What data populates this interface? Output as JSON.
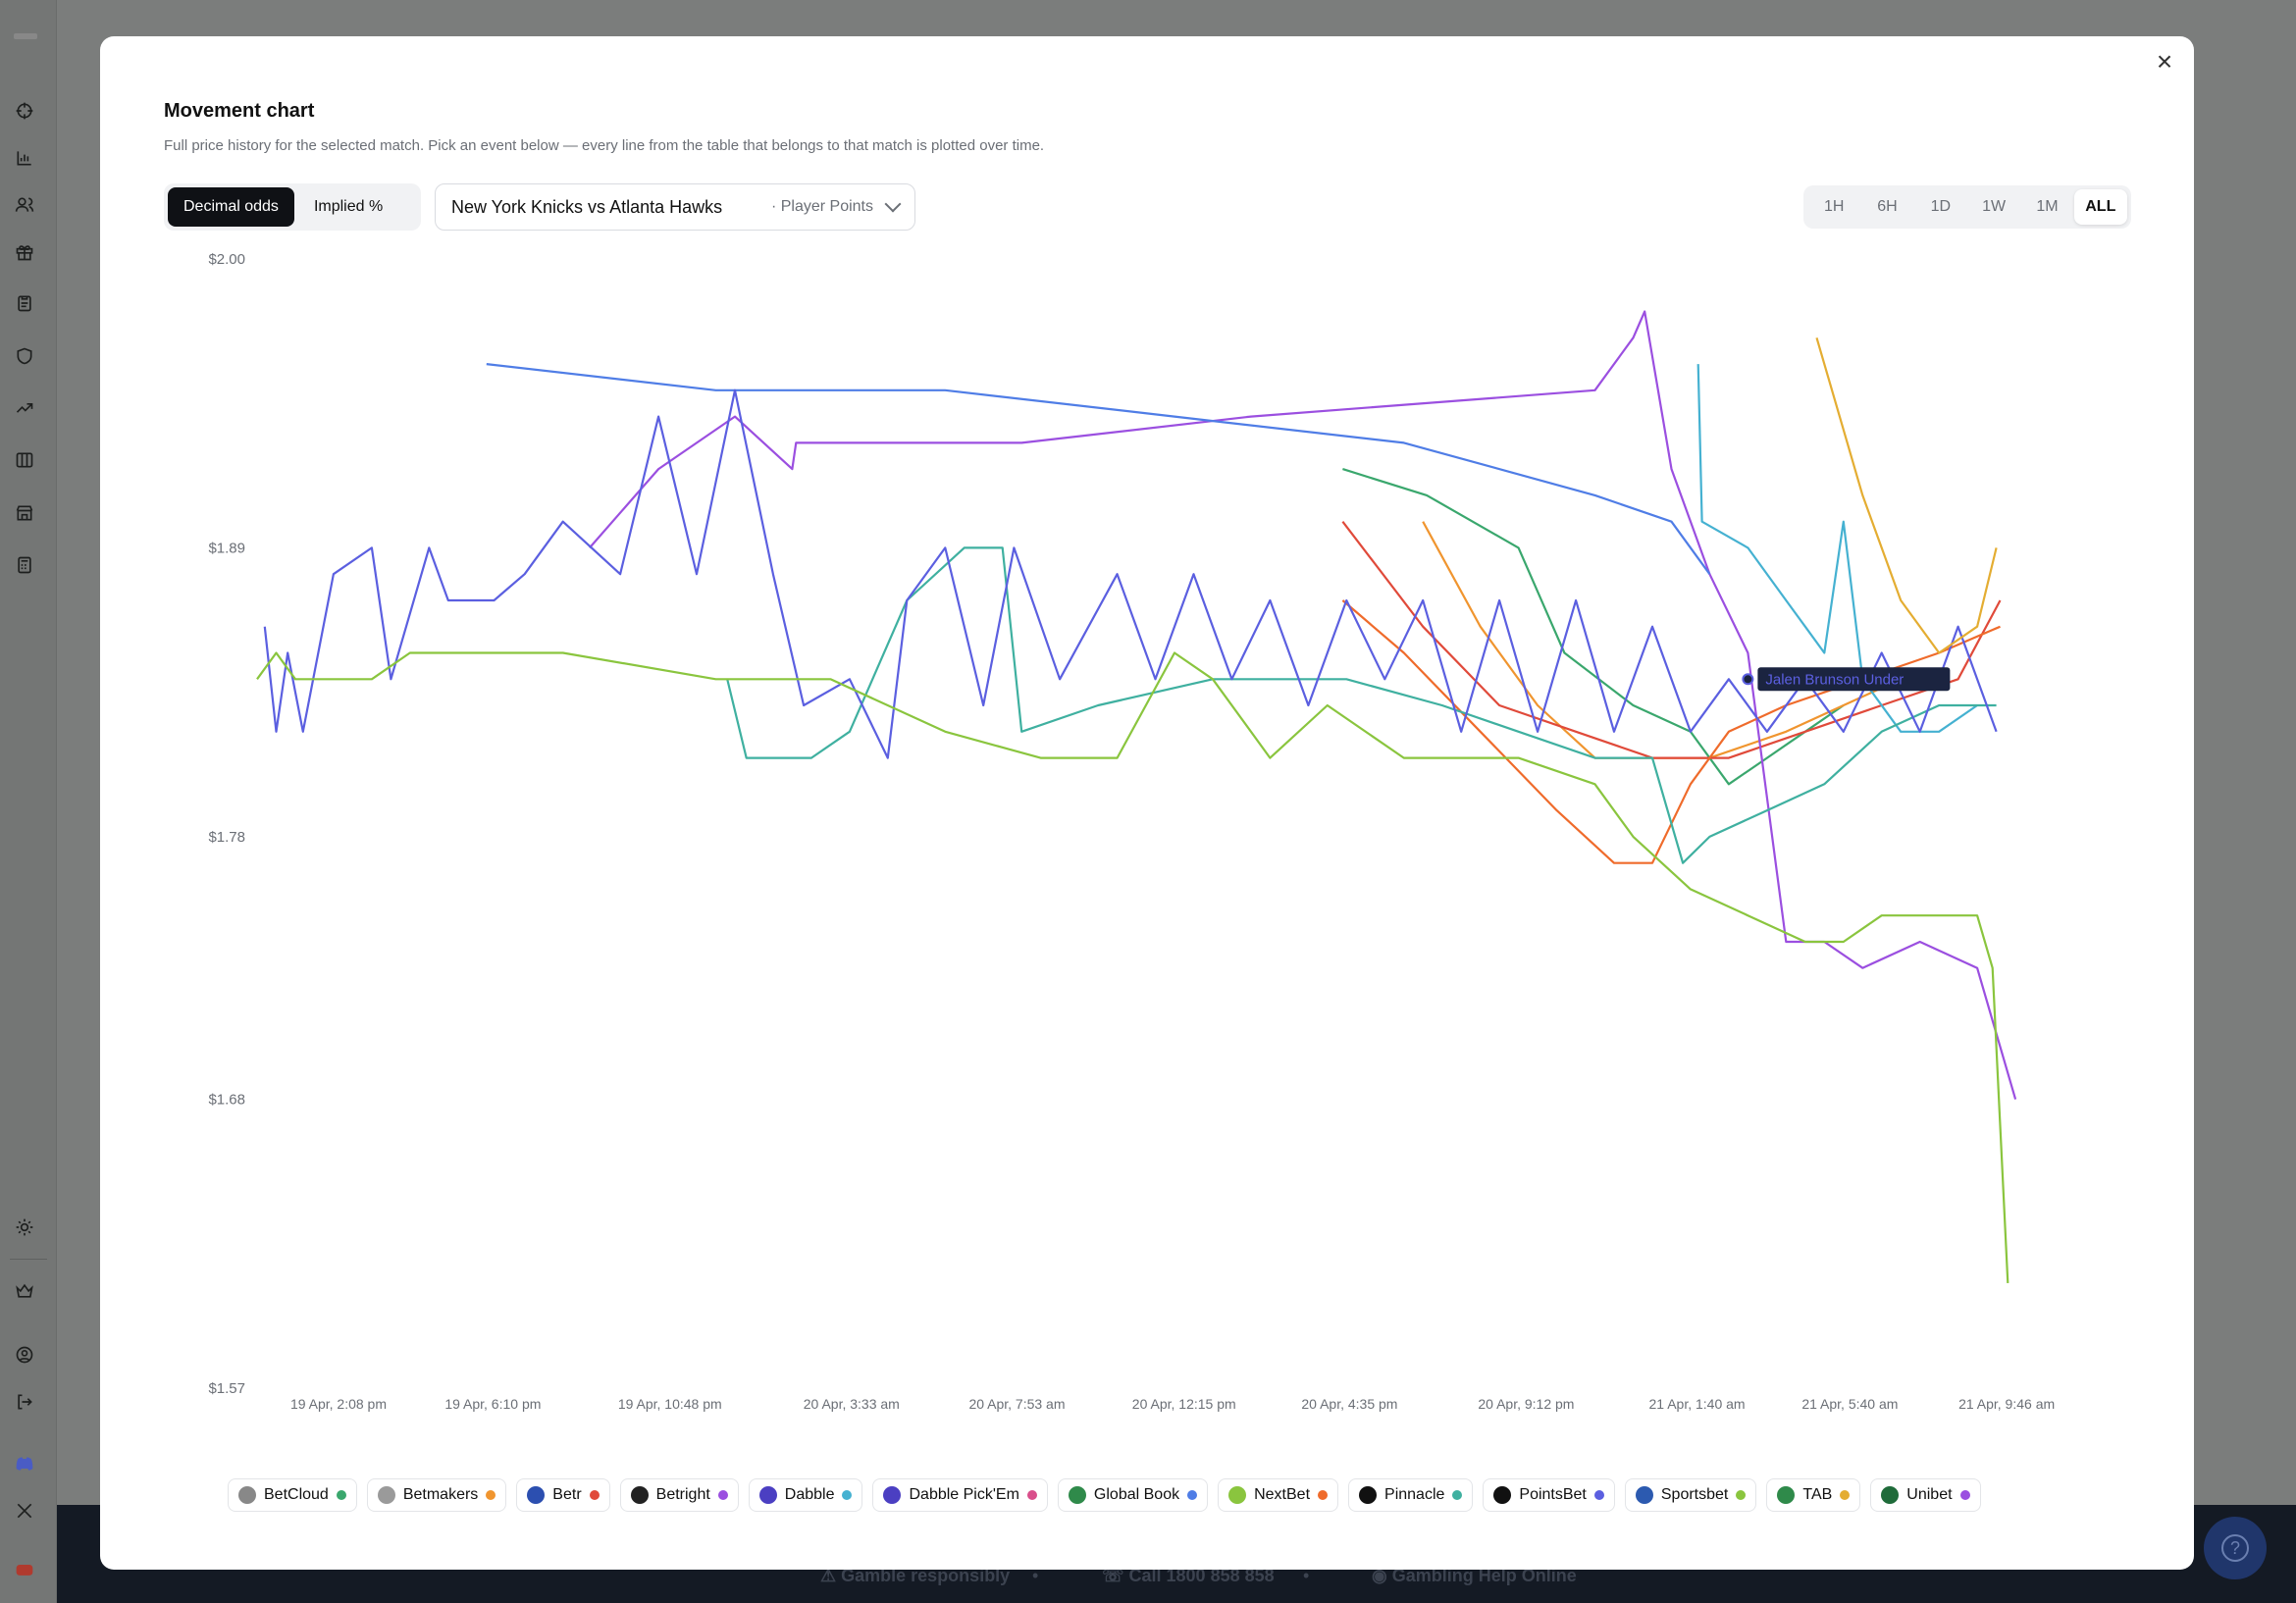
{
  "modal": {
    "title": "Movement chart",
    "subtitle": "Full price history for the selected match. Pick an event below — every line from the table that belongs to that match is plotted over time.",
    "close_label": "×"
  },
  "odds_toggle": {
    "options": [
      "Decimal odds",
      "Implied %"
    ],
    "selected": "Decimal odds"
  },
  "event_select": {
    "event": "New York Knicks vs Atlanta Hawks",
    "market": "· Player Points"
  },
  "time_range": {
    "options": [
      "1H",
      "6H",
      "1D",
      "1W",
      "1M",
      "ALL"
    ],
    "selected": "ALL"
  },
  "footer": {
    "gamble": "Gamble responsibly",
    "call": "Call 1800 858 858",
    "help": "Gambling Help Online",
    "separator": "•"
  },
  "chart_data": {
    "type": "line",
    "y_ticks": [
      "$2.00",
      "$1.89",
      "$1.78",
      "$1.68",
      "$1.57"
    ],
    "y_tick_values": [
      2.0,
      1.89,
      1.78,
      1.68,
      1.57
    ],
    "ylim": [
      1.57,
      2.0
    ],
    "x_ticks": [
      "19 Apr, 2:08 pm",
      "19 Apr, 6:10 pm",
      "19 Apr, 10:48 pm",
      "20 Apr, 3:33 am",
      "20 Apr, 7:53 am",
      "20 Apr, 12:15 pm",
      "20 Apr, 4:35 pm",
      "20 Apr, 9:12 pm",
      "21 Apr, 1:40 am",
      "21 Apr, 5:40 am",
      "21 Apr, 9:46 am"
    ],
    "x_tick_hours": [
      2.13,
      6.17,
      10.8,
      15.55,
      19.88,
      24.25,
      28.58,
      33.2,
      37.67,
      41.67,
      45.77
    ],
    "xlim_hours": [
      0,
      48
    ],
    "grid": false,
    "legend_position": "bottom",
    "tooltip": {
      "label": "Jalen Brunson Under",
      "x": 39.0,
      "y": 1.84,
      "color": "#5b5fe0"
    },
    "series": [
      {
        "name": "BetCloud",
        "color": "#3aa76d",
        "points": [
          [
            28.4,
            1.92
          ],
          [
            30.6,
            1.91
          ],
          [
            33.0,
            1.89
          ],
          [
            34.2,
            1.85
          ],
          [
            36.0,
            1.83
          ],
          [
            37.5,
            1.82
          ],
          [
            38.5,
            1.8
          ],
          [
            39.5,
            1.81
          ],
          [
            40.5,
            1.82
          ],
          [
            41.5,
            1.83
          ]
        ]
      },
      {
        "name": "Betmakers",
        "color": "#f0952f",
        "points": [
          [
            30.5,
            1.9
          ],
          [
            32.0,
            1.86
          ],
          [
            33.5,
            1.83
          ],
          [
            35.0,
            1.81
          ],
          [
            36.5,
            1.81
          ],
          [
            38.0,
            1.81
          ],
          [
            40.0,
            1.82
          ],
          [
            41.5,
            1.83
          ],
          [
            43.0,
            1.84
          ]
        ]
      },
      {
        "name": "Betr",
        "color": "#e04a3a",
        "points": [
          [
            28.4,
            1.9
          ],
          [
            30.5,
            1.86
          ],
          [
            32.5,
            1.83
          ],
          [
            34.5,
            1.82
          ],
          [
            36.5,
            1.81
          ],
          [
            38.5,
            1.81
          ],
          [
            40.5,
            1.82
          ],
          [
            42.5,
            1.83
          ],
          [
            44.5,
            1.84
          ],
          [
            45.6,
            1.87
          ]
        ]
      },
      {
        "name": "Betright",
        "color": "#9b4fe0",
        "points": [
          [
            8.7,
            1.89
          ],
          [
            10.5,
            1.92
          ],
          [
            12.5,
            1.94
          ],
          [
            14.0,
            1.92
          ],
          [
            14.1,
            1.93
          ],
          [
            20.0,
            1.93
          ],
          [
            26.0,
            1.94
          ],
          [
            35.0,
            1.95
          ],
          [
            36.0,
            1.97
          ],
          [
            36.3,
            1.98
          ],
          [
            37.0,
            1.92
          ],
          [
            38.0,
            1.88
          ],
          [
            39.0,
            1.85
          ],
          [
            40.0,
            1.74
          ],
          [
            41.0,
            1.74
          ],
          [
            42.0,
            1.73
          ],
          [
            43.5,
            1.74
          ],
          [
            45.0,
            1.73
          ],
          [
            46.0,
            1.68
          ]
        ]
      },
      {
        "name": "Dabble",
        "color": "#45b1d1",
        "points": [
          [
            37.7,
            1.96
          ],
          [
            37.8,
            1.9
          ],
          [
            39.0,
            1.89
          ],
          [
            40.0,
            1.87
          ],
          [
            40.5,
            1.86
          ],
          [
            41.0,
            1.85
          ],
          [
            41.5,
            1.9
          ],
          [
            42.0,
            1.84
          ],
          [
            43.0,
            1.82
          ],
          [
            44.0,
            1.82
          ],
          [
            45.0,
            1.83
          ]
        ]
      },
      {
        "name": "Dabble Pick'Em",
        "color": "#d94f8b",
        "points": []
      },
      {
        "name": "Global Book",
        "color": "#4f7de6",
        "points": [
          [
            6.0,
            1.96
          ],
          [
            12.0,
            1.95
          ],
          [
            18.0,
            1.95
          ],
          [
            24.0,
            1.94
          ],
          [
            30.0,
            1.93
          ],
          [
            35.0,
            1.91
          ],
          [
            37.0,
            1.9
          ],
          [
            38.0,
            1.88
          ]
        ]
      },
      {
        "name": "NextBet",
        "color": "#ef6b2b",
        "points": [
          [
            28.4,
            1.87
          ],
          [
            30.0,
            1.85
          ],
          [
            32.0,
            1.82
          ],
          [
            34.0,
            1.79
          ],
          [
            35.5,
            1.77
          ],
          [
            36.5,
            1.77
          ],
          [
            37.5,
            1.8
          ],
          [
            38.5,
            1.82
          ],
          [
            40.0,
            1.83
          ],
          [
            42.0,
            1.84
          ],
          [
            44.0,
            1.85
          ],
          [
            45.6,
            1.86
          ]
        ]
      },
      {
        "name": "Pinnacle",
        "color": "#3fb0a0",
        "points": [
          [
            12.3,
            1.84
          ],
          [
            12.8,
            1.81
          ],
          [
            14.5,
            1.81
          ],
          [
            15.5,
            1.82
          ],
          [
            17.0,
            1.87
          ],
          [
            18.5,
            1.89
          ],
          [
            19.5,
            1.89
          ],
          [
            20.0,
            1.82
          ],
          [
            22.0,
            1.83
          ],
          [
            25.0,
            1.84
          ],
          [
            28.5,
            1.84
          ],
          [
            31.0,
            1.83
          ],
          [
            33.0,
            1.82
          ],
          [
            35.0,
            1.81
          ],
          [
            36.5,
            1.81
          ],
          [
            37.3,
            1.77
          ],
          [
            38.0,
            1.78
          ],
          [
            39.5,
            1.79
          ],
          [
            41.0,
            1.8
          ],
          [
            42.5,
            1.82
          ],
          [
            44.0,
            1.83
          ],
          [
            45.5,
            1.83
          ]
        ]
      },
      {
        "name": "PointsBet",
        "color": "#5b5fe0",
        "points": [
          [
            0.2,
            1.86
          ],
          [
            0.5,
            1.82
          ],
          [
            0.8,
            1.85
          ],
          [
            1.2,
            1.82
          ],
          [
            2.0,
            1.88
          ],
          [
            3.0,
            1.89
          ],
          [
            3.5,
            1.84
          ],
          [
            4.5,
            1.89
          ],
          [
            5.0,
            1.87
          ],
          [
            6.2,
            1.87
          ],
          [
            7.0,
            1.88
          ],
          [
            8.0,
            1.9
          ],
          [
            9.5,
            1.88
          ],
          [
            10.5,
            1.94
          ],
          [
            11.5,
            1.88
          ],
          [
            12.5,
            1.95
          ],
          [
            13.5,
            1.88
          ],
          [
            14.3,
            1.83
          ],
          [
            15.5,
            1.84
          ],
          [
            16.5,
            1.81
          ],
          [
            17.0,
            1.87
          ],
          [
            18.0,
            1.89
          ],
          [
            19.0,
            1.83
          ],
          [
            19.8,
            1.89
          ],
          [
            21.0,
            1.84
          ],
          [
            22.5,
            1.88
          ],
          [
            23.5,
            1.84
          ],
          [
            24.5,
            1.88
          ],
          [
            25.5,
            1.84
          ],
          [
            26.5,
            1.87
          ],
          [
            27.5,
            1.83
          ],
          [
            28.5,
            1.87
          ],
          [
            29.5,
            1.84
          ],
          [
            30.5,
            1.87
          ],
          [
            31.5,
            1.82
          ],
          [
            32.5,
            1.87
          ],
          [
            33.5,
            1.82
          ],
          [
            34.5,
            1.87
          ],
          [
            35.5,
            1.82
          ],
          [
            36.5,
            1.86
          ],
          [
            37.5,
            1.82
          ],
          [
            38.5,
            1.84
          ],
          [
            39.5,
            1.82
          ],
          [
            40.5,
            1.84
          ],
          [
            41.5,
            1.82
          ],
          [
            42.5,
            1.85
          ],
          [
            43.5,
            1.82
          ],
          [
            44.5,
            1.86
          ],
          [
            45.5,
            1.82
          ]
        ]
      },
      {
        "name": "Sportsbet",
        "color": "#8ac53e",
        "points": [
          [
            0.0,
            1.84
          ],
          [
            0.5,
            1.85
          ],
          [
            1.0,
            1.84
          ],
          [
            2.5,
            1.84
          ],
          [
            3.0,
            1.84
          ],
          [
            4.0,
            1.85
          ],
          [
            8.0,
            1.85
          ],
          [
            12.0,
            1.84
          ],
          [
            15.0,
            1.84
          ],
          [
            18.0,
            1.82
          ],
          [
            20.5,
            1.81
          ],
          [
            22.5,
            1.81
          ],
          [
            24.0,
            1.85
          ],
          [
            25.0,
            1.84
          ],
          [
            26.5,
            1.81
          ],
          [
            28.0,
            1.83
          ],
          [
            30.0,
            1.81
          ],
          [
            33.0,
            1.81
          ],
          [
            35.0,
            1.8
          ],
          [
            36.0,
            1.78
          ],
          [
            37.5,
            1.76
          ],
          [
            39.0,
            1.75
          ],
          [
            40.5,
            1.74
          ],
          [
            41.5,
            1.74
          ],
          [
            42.5,
            1.75
          ],
          [
            44.0,
            1.75
          ],
          [
            45.0,
            1.75
          ],
          [
            45.4,
            1.73
          ],
          [
            45.8,
            1.61
          ]
        ]
      },
      {
        "name": "TAB",
        "color": "#e4ad32",
        "points": [
          [
            40.8,
            1.97
          ],
          [
            42.0,
            1.91
          ],
          [
            43.0,
            1.87
          ],
          [
            44.0,
            1.85
          ],
          [
            45.0,
            1.86
          ],
          [
            45.5,
            1.89
          ]
        ]
      },
      {
        "name": "Unibet",
        "color": "#9b4fe0",
        "points": []
      }
    ]
  },
  "legend": [
    {
      "name": "BetCloud",
      "logo": "betcloud-logo",
      "logo_color": "#888888",
      "dot_color": "#3aa76d"
    },
    {
      "name": "Betmakers",
      "logo": "betmakers-logo",
      "logo_color": "#9a9a9a",
      "dot_color": "#f0952f"
    },
    {
      "name": "Betr",
      "logo": "betr-logo",
      "logo_color": "#2c4fb0",
      "dot_color": "#e04a3a"
    },
    {
      "name": "Betright",
      "logo": "betright-logo",
      "logo_color": "#222222",
      "dot_color": "#9b4fe0"
    },
    {
      "name": "Dabble",
      "logo": "dabble-logo",
      "logo_color": "#4b3fc2",
      "dot_color": "#45b1d1"
    },
    {
      "name": "Dabble Pick'Em",
      "logo": "dabble-pickem-logo",
      "logo_color": "#4b3fc2",
      "dot_color": "#d94f8b"
    },
    {
      "name": "Global Book",
      "logo": "globalbook-logo",
      "logo_color": "#2f8a4a",
      "dot_color": "#4f7de6"
    },
    {
      "name": "NextBet",
      "logo": "nextbet-logo",
      "logo_color": "#8ac53e",
      "dot_color": "#ef6b2b"
    },
    {
      "name": "Pinnacle",
      "logo": "pinnacle-logo",
      "logo_color": "#111111",
      "dot_color": "#3fb0a0"
    },
    {
      "name": "PointsBet",
      "logo": "pointsbet-logo",
      "logo_color": "#111111",
      "dot_color": "#5b5fe0"
    },
    {
      "name": "Sportsbet",
      "logo": "sportsbet-logo",
      "logo_color": "#2c5ab0",
      "dot_color": "#8ac53e"
    },
    {
      "name": "TAB",
      "logo": "tab-logo",
      "logo_color": "#2f8a4a",
      "dot_color": "#e4ad32"
    },
    {
      "name": "Unibet",
      "logo": "unibet-logo",
      "logo_color": "#1f6b3a",
      "dot_color": "#9b4fe0"
    }
  ]
}
